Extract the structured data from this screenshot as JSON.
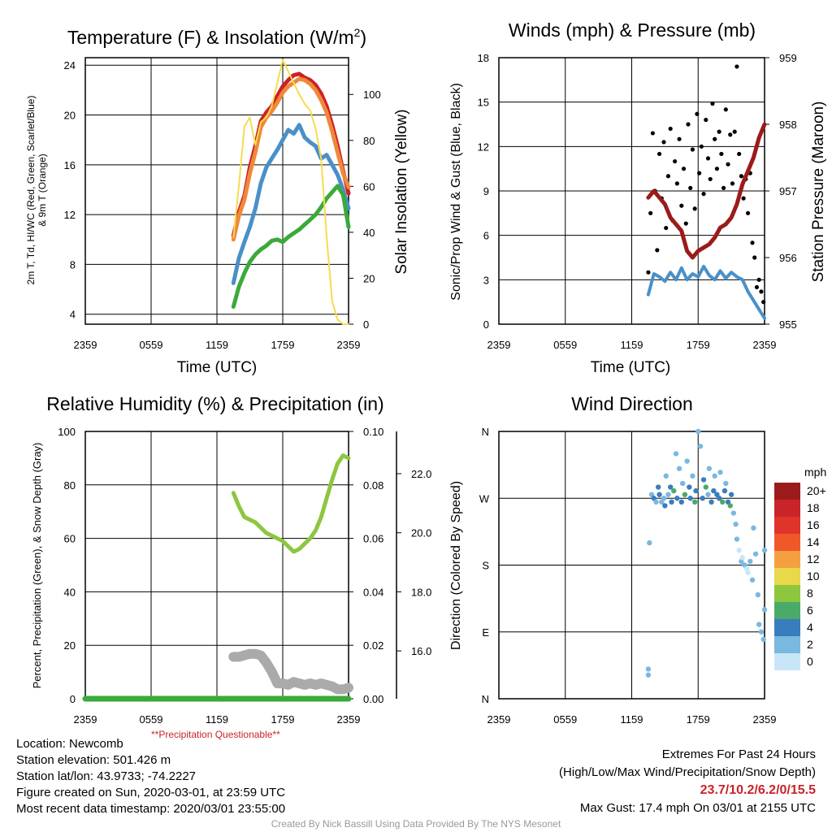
{
  "chart_data": [
    {
      "type": "line",
      "title": "Temperature (F) & Insolation (W/m2)",
      "title_main": "Temperature (F) & Insolation (W/m",
      "title_sup": "2",
      "title_end": ")",
      "xlabel": "Time (UTC)",
      "ylabel_line1": "2m T, Td, HI/WC (Red, Green, Scarlet/Blue)",
      "ylabel_line2": "& 9m T (Orange)",
      "y2label": "Solar Insolation (Yellow)",
      "x_ticks": [
        "2359",
        "0559",
        "1159",
        "1759",
        "2359"
      ],
      "ylim": [
        3.2,
        24.6
      ],
      "y_ticks": [
        4,
        8,
        12,
        16,
        20,
        24
      ],
      "y2lim": [
        0,
        116
      ],
      "y2_ticks": [
        0,
        20,
        40,
        60,
        80,
        100
      ],
      "series": [
        {
          "role": "2m temperature",
          "color": "#cc2027",
          "x": [
            13.5,
            14,
            14.5,
            15,
            15.5,
            16,
            16.5,
            17,
            17.5,
            18,
            18.5,
            19,
            19.5,
            20,
            20.5,
            21,
            21.5,
            22,
            22.5,
            23,
            23.5,
            24
          ],
          "values": [
            10.3,
            12.2,
            13.5,
            15.8,
            17.5,
            19.5,
            20.2,
            20.7,
            21.5,
            22.3,
            22.8,
            23.2,
            23.3,
            23.0,
            22.8,
            22.4,
            21.7,
            20.7,
            19.2,
            17.5,
            15.5,
            13.7
          ]
        },
        {
          "role": "9m temperature",
          "color": "#f0883a",
          "x": [
            13.5,
            14,
            14.5,
            15,
            15.5,
            16,
            16.5,
            17,
            17.5,
            18,
            18.5,
            19,
            19.5,
            20,
            20.5,
            21,
            21.5,
            22,
            22.5,
            23,
            23.5,
            24
          ],
          "values": [
            10.0,
            11.9,
            13.2,
            15.3,
            17.0,
            19.0,
            19.8,
            20.3,
            21.0,
            21.8,
            22.3,
            22.6,
            22.9,
            22.8,
            22.5,
            22.0,
            21.2,
            20.2,
            18.7,
            17.0,
            15.3,
            14.2
          ]
        },
        {
          "role": "wind chill",
          "color": "#4a90c8",
          "x": [
            13.5,
            14,
            14.5,
            15,
            15.5,
            16,
            16.5,
            17,
            17.5,
            18,
            18.5,
            19,
            19.5,
            20,
            20.5,
            21,
            21.5,
            22,
            22.5,
            23,
            23.5,
            24
          ],
          "values": [
            6.5,
            8.5,
            9.8,
            11.0,
            12.5,
            14.5,
            15.8,
            16.5,
            17.2,
            18.0,
            18.8,
            18.5,
            19.2,
            18.2,
            17.8,
            17.5,
            16.5,
            16.8,
            16.0,
            15.2,
            14.0,
            12.5
          ]
        },
        {
          "role": "dew point",
          "color": "#3aaa3a",
          "x": [
            13.5,
            14,
            14.5,
            15,
            15.5,
            16,
            16.5,
            17,
            17.5,
            18,
            18.5,
            19,
            19.5,
            20,
            20.5,
            21,
            21.5,
            22,
            22.5,
            23,
            23.5,
            24
          ],
          "values": [
            4.6,
            6.2,
            7.3,
            8.2,
            8.8,
            9.2,
            9.5,
            9.9,
            10.0,
            9.8,
            10.2,
            10.5,
            10.8,
            11.2,
            11.6,
            12.0,
            12.6,
            13.3,
            13.8,
            14.3,
            13.6,
            11.0
          ]
        },
        {
          "role": "solar insolation",
          "axis": "y2",
          "color": "#f5dc50",
          "x": [
            13.5,
            14,
            14.5,
            15,
            15.5,
            16,
            16.5,
            17,
            17.5,
            18,
            18.5,
            19,
            19.5,
            20,
            20.5,
            21,
            21.5,
            22,
            22.5,
            23,
            23.5,
            24
          ],
          "values": [
            38,
            60,
            86,
            90,
            78,
            88,
            90,
            95,
            105,
            115,
            110,
            105,
            100,
            96,
            93,
            85,
            72,
            38,
            10,
            2,
            0,
            0
          ]
        }
      ]
    },
    {
      "type": "line",
      "title": "Winds (mph) & Pressure (mb)",
      "xlabel": "Time (UTC)",
      "ylabel": "Sonic/Prop Wind & Gust (Blue, Black)",
      "y2label": "Station Pressure (Maroon)",
      "x_ticks": [
        "2359",
        "0559",
        "1159",
        "1759",
        "2359"
      ],
      "ylim": [
        0,
        18
      ],
      "y_ticks": [
        0,
        3,
        6,
        9,
        12,
        15,
        18
      ],
      "y2lim": [
        955,
        959
      ],
      "y2_ticks": [
        955,
        956,
        957,
        958,
        959
      ],
      "series": [
        {
          "role": "wind speed",
          "color": "#4a90c8",
          "x": [
            13.5,
            14,
            14.5,
            15,
            15.5,
            16,
            16.5,
            17,
            17.5,
            18,
            18.5,
            19,
            19.5,
            20,
            20.5,
            21,
            21.5,
            22,
            22.5,
            23,
            23.5,
            24
          ],
          "values": [
            2.0,
            3.4,
            3.2,
            2.9,
            3.5,
            3.0,
            3.8,
            3.0,
            3.4,
            3.2,
            3.9,
            3.3,
            3.0,
            3.6,
            3.1,
            3.5,
            3.2,
            3.0,
            2.2,
            1.6,
            1.0,
            0.4
          ]
        },
        {
          "role": "gust",
          "color": "#000000",
          "style": "points",
          "x": [
            13.5,
            13.7,
            13.9,
            14.1,
            14.3,
            14.5,
            14.7,
            14.9,
            15.1,
            15.3,
            15.5,
            15.7,
            15.9,
            16.1,
            16.3,
            16.5,
            16.7,
            16.9,
            17.1,
            17.3,
            17.5,
            17.7,
            17.9,
            18.1,
            18.3,
            18.5,
            18.7,
            18.9,
            19.1,
            19.3,
            19.5,
            19.7,
            19.9,
            20.1,
            20.3,
            20.5,
            20.7,
            20.9,
            21.1,
            21.3,
            21.5,
            21.7,
            21.9,
            22.1,
            22.3,
            22.5,
            22.7,
            22.9,
            23.1,
            23.3,
            23.5,
            23.7,
            23.9
          ],
          "values": [
            3.5,
            7.5,
            12.9,
            9.0,
            5.0,
            11.5,
            8.5,
            12.3,
            6.5,
            10.0,
            13.2,
            7.0,
            11.0,
            9.5,
            12.5,
            8.0,
            10.5,
            6.8,
            13.5,
            9.2,
            11.8,
            7.8,
            14.2,
            10.2,
            12.0,
            8.8,
            13.8,
            11.2,
            9.8,
            14.9,
            12.5,
            10.5,
            13.0,
            11.5,
            9.2,
            14.5,
            10.8,
            12.8,
            9.5,
            13.0,
            17.4,
            11.5,
            10.0,
            8.5,
            9.8,
            7.5,
            10.2,
            5.5,
            4.5,
            2.5,
            3.0,
            2.2,
            1.5
          ]
        },
        {
          "role": "station pressure",
          "axis": "y2",
          "color": "#9b1b1b",
          "x": [
            13.5,
            14,
            14.5,
            15,
            15.5,
            16,
            16.5,
            17,
            17.5,
            18,
            18.5,
            19,
            19.5,
            20,
            20.5,
            21,
            21.5,
            22,
            22.5,
            23,
            23.5,
            24
          ],
          "values": [
            956.9,
            957.0,
            956.9,
            956.8,
            956.6,
            956.5,
            956.4,
            956.1,
            956.0,
            956.1,
            956.15,
            956.2,
            956.3,
            956.45,
            956.5,
            956.6,
            956.8,
            957.1,
            957.3,
            957.5,
            957.8,
            958.0
          ]
        }
      ]
    },
    {
      "type": "line",
      "title": "Relative Humidity (%) & Precipitation (in)",
      "ylabel": "Percent, Precipitation (Green), & Snow Depth (Gray)",
      "x_ticks": [
        "2359",
        "0559",
        "1159",
        "1759",
        "2359"
      ],
      "ylim": [
        0,
        100
      ],
      "y_ticks": [
        0,
        20,
        40,
        60,
        80,
        100
      ],
      "y2lim": [
        0,
        0.1
      ],
      "y2_ticks": [
        "0.00",
        "0.02",
        "0.04",
        "0.06",
        "0.08",
        "0.10"
      ],
      "y3_ticks": [
        "16.0",
        "18.0",
        "20.0",
        "22.0"
      ],
      "y3_tick_values": [
        16.0,
        18.0,
        20.0,
        22.0
      ],
      "y3lim": [
        14.38,
        23.43
      ],
      "note": "**Precipitation Questionable**",
      "series": [
        {
          "role": "relative humidity",
          "color": "#8dc63f",
          "x": [
            13.5,
            14,
            14.5,
            15,
            15.5,
            16,
            16.5,
            17,
            17.5,
            18,
            18.5,
            19,
            19.5,
            20,
            20.5,
            21,
            21.5,
            22,
            22.5,
            23,
            23.5,
            24
          ],
          "values": [
            77,
            72,
            68,
            67,
            66,
            64,
            62,
            61,
            60,
            59,
            57,
            55,
            56,
            58,
            60,
            63,
            68,
            75,
            82,
            88,
            91,
            90
          ]
        },
        {
          "role": "precipitation",
          "axis": "y2",
          "color": "#3aaa3a",
          "x": [
            0,
            24
          ],
          "values": [
            0,
            0
          ]
        },
        {
          "role": "snow depth",
          "axis": "y3",
          "color": "#aaaaaa",
          "x": [
            13.5,
            14,
            14.5,
            15,
            15.5,
            16,
            16.5,
            17,
            17.5,
            18,
            18.5,
            19,
            19.5,
            20,
            20.5,
            21,
            21.5,
            22,
            22.5,
            23,
            23.5,
            24
          ],
          "values": [
            15.8,
            15.8,
            15.85,
            15.9,
            15.9,
            15.85,
            15.6,
            15.3,
            14.9,
            14.9,
            14.85,
            14.95,
            14.9,
            14.85,
            14.9,
            14.85,
            14.9,
            14.85,
            14.8,
            14.7,
            14.7,
            14.75
          ]
        }
      ]
    },
    {
      "type": "scatter",
      "title": "Wind Direction",
      "ylabel": "Direction (Colored By Speed)",
      "x_ticks": [
        "2359",
        "0559",
        "1159",
        "1759",
        "2359"
      ],
      "ylim": [
        0,
        360
      ],
      "y_ticks": [
        0,
        90,
        180,
        270,
        360
      ],
      "y_tick_labels": [
        "N",
        "E",
        "S",
        "W",
        "N"
      ],
      "colorbar_title": "mph",
      "colorbar_labels": [
        "20+",
        "18",
        "16",
        "14",
        "12",
        "10",
        "8",
        "6",
        "4",
        "2",
        "0"
      ],
      "colorbar_colors": [
        "#9b1b1b",
        "#c8242a",
        "#e0342b",
        "#f0582a",
        "#f5a040",
        "#e8d84a",
        "#8dc63f",
        "#4aaa6a",
        "#3a7dbd",
        "#7ab8e0",
        "#c8e6f8"
      ],
      "points": {
        "x": [
          13.5,
          13.5,
          13.6,
          13.8,
          14.0,
          14.2,
          14.4,
          14.5,
          14.7,
          14.9,
          15.0,
          15.1,
          15.3,
          15.5,
          15.6,
          15.8,
          16.0,
          16.1,
          16.3,
          16.5,
          16.6,
          16.8,
          17.0,
          17.2,
          17.3,
          17.5,
          17.7,
          17.8,
          18.0,
          18.2,
          18.4,
          18.5,
          18.7,
          18.9,
          19.0,
          19.2,
          19.4,
          19.5,
          19.7,
          19.9,
          20.0,
          20.2,
          20.4,
          20.5,
          20.7,
          20.9,
          21.0,
          21.2,
          21.4,
          21.5,
          21.7,
          21.9,
          22.0,
          22.2,
          22.4,
          22.5,
          22.7,
          22.9,
          23.0,
          23.2,
          23.4,
          23.5,
          23.7,
          23.9,
          24.0,
          24.0
        ],
        "y": [
          40,
          32,
          210,
          275,
          270,
          265,
          285,
          275,
          265,
          270,
          260,
          300,
          275,
          285,
          265,
          280,
          330,
          270,
          310,
          265,
          290,
          275,
          320,
          285,
          270,
          300,
          265,
          280,
          360,
          340,
          270,
          295,
          285,
          275,
          310,
          265,
          280,
          300,
          275,
          270,
          305,
          265,
          280,
          290,
          265,
          260,
          275,
          250,
          235,
          215,
          200,
          185,
          190,
          180,
          175,
          170,
          185,
          160,
          230,
          195,
          140,
          100,
          90,
          80,
          120,
          200
        ],
        "mph": [
          2,
          2,
          2,
          1,
          3,
          2,
          4,
          3,
          1,
          2,
          3,
          1,
          2,
          4,
          3,
          5,
          1,
          3,
          2,
          4,
          2,
          5,
          1,
          3,
          4,
          2,
          5,
          3,
          1,
          1,
          4,
          3,
          5,
          2,
          2,
          4,
          3,
          1,
          4,
          3,
          2,
          5,
          3,
          2,
          4,
          6,
          3,
          2,
          1,
          1,
          0,
          1,
          0,
          1,
          0,
          0,
          1,
          1,
          2,
          1,
          1,
          2,
          2,
          1,
          1,
          2
        ]
      }
    }
  ],
  "info": {
    "location": "Location: Newcomb",
    "elevation": "Station elevation: 501.426 m",
    "latlon": "Station lat/lon: 43.9733; -74.2227",
    "created": "Figure created on Sun, 2020-03-01, at 23:59 UTC",
    "recent": "Most recent data timestamp: 2020/03/01 23:55:00"
  },
  "extremes": {
    "title": "Extremes For Past 24 Hours",
    "legend": "(High/Low/Max Wind/Precipitation/Snow Depth)",
    "values": "23.7/10.2/6.2/0/15.5",
    "gust": "Max Gust: 17.4 mph On 03/01 at 2155 UTC"
  },
  "credit": "Created By Nick Bassill Using Data Provided By The NYS Mesonet"
}
